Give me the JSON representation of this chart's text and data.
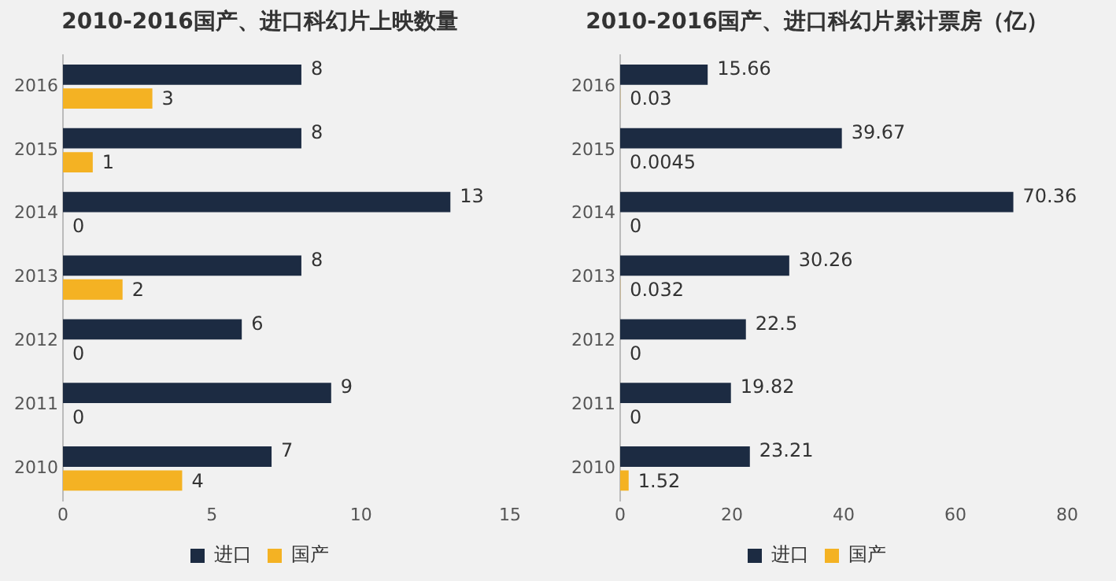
{
  "chart_data": [
    {
      "type": "bar",
      "orientation": "horizontal",
      "title": "2010-2016国产、进口科幻片上映数量",
      "categories": [
        "2016",
        "2015",
        "2014",
        "2013",
        "2012",
        "2011",
        "2010"
      ],
      "series": [
        {
          "name": "进口",
          "color": "#1c2b42",
          "values": [
            8,
            8,
            13,
            8,
            6,
            9,
            7
          ]
        },
        {
          "name": "国产",
          "color": "#f4b223",
          "values": [
            3,
            1,
            0,
            2,
            0,
            0,
            4
          ]
        }
      ],
      "xlim": [
        0,
        15
      ],
      "xticks": [
        0,
        5,
        10,
        15
      ],
      "grid": false,
      "legend": "bottom",
      "data_labels": true
    },
    {
      "type": "bar",
      "orientation": "horizontal",
      "title": "2010-2016国产、进口科幻片累计票房（亿）",
      "categories": [
        "2016",
        "2015",
        "2014",
        "2013",
        "2012",
        "2011",
        "2010"
      ],
      "series": [
        {
          "name": "进口",
          "color": "#1c2b42",
          "values": [
            15.66,
            39.67,
            70.36,
            30.26,
            22.5,
            19.82,
            23.21
          ]
        },
        {
          "name": "国产",
          "color": "#f4b223",
          "values": [
            0.03,
            0.0045,
            0,
            0.032,
            0,
            0,
            1.52
          ]
        }
      ],
      "xlim": [
        0,
        80
      ],
      "xticks": [
        0,
        20,
        40,
        60,
        80
      ],
      "grid": false,
      "legend": "bottom",
      "data_labels": true
    }
  ]
}
